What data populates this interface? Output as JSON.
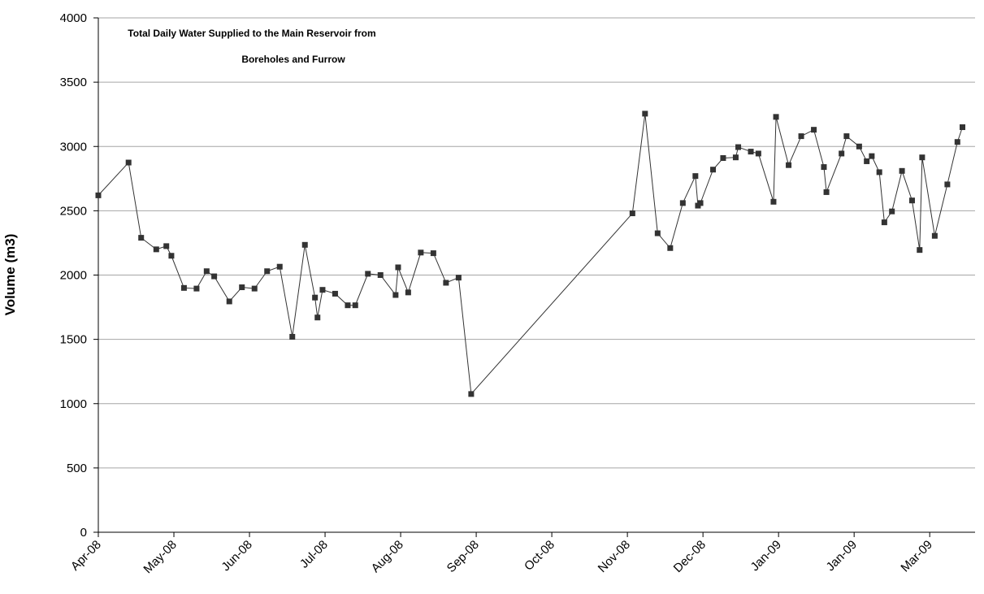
{
  "chart_data": {
    "type": "line",
    "title": [
      "Total Daily Water Supplied  to the Main Reservoir from",
      "Boreholes and Furrow"
    ],
    "y_label": "Volume (m3)",
    "x": [
      0,
      12,
      17,
      23,
      27,
      29,
      34,
      39,
      43,
      46,
      52,
      57,
      62,
      67,
      72,
      77,
      82,
      86,
      87,
      89,
      94,
      99,
      102,
      107,
      112,
      118,
      119,
      123,
      128,
      133,
      138,
      143,
      148,
      212,
      217,
      222,
      227,
      232,
      237,
      238,
      239,
      244,
      248,
      253,
      254,
      259,
      262,
      268,
      269,
      274,
      279,
      284,
      288,
      289,
      295,
      297,
      302,
      305,
      307,
      310,
      312,
      315,
      319,
      323,
      326,
      327,
      332,
      337,
      341,
      343
    ],
    "series": [
      {
        "color": "#333333",
        "values": [
          2620,
          2875,
          2290,
          2200,
          2225,
          2150,
          1900,
          1895,
          2030,
          1990,
          1795,
          1905,
          1895,
          2030,
          2065,
          1520,
          2235,
          1825,
          1670,
          1885,
          1855,
          1765,
          1765,
          2010,
          2000,
          1845,
          2060,
          1865,
          2175,
          2170,
          1940,
          1980,
          1075,
          2480,
          3255,
          2325,
          2210,
          2560,
          2770,
          2540,
          2560,
          2820,
          2910,
          2915,
          2995,
          2960,
          2945,
          2570,
          3230,
          2855,
          3080,
          3130,
          2840,
          2645,
          2945,
          3080,
          3000,
          2885,
          2925,
          2800,
          2410,
          2495,
          2810,
          2580,
          2195,
          2915,
          2305,
          2705,
          3035,
          3150
        ]
      }
    ],
    "xlim": [
      0,
      348
    ],
    "xticks": [
      {
        "value": 0,
        "label": "Apr-08"
      },
      {
        "value": 30,
        "label": "May-08"
      },
      {
        "value": 60,
        "label": "Jun-08"
      },
      {
        "value": 90,
        "label": "Jul-08"
      },
      {
        "value": 120,
        "label": "Aug-08"
      },
      {
        "value": 150,
        "label": "Sep-08"
      },
      {
        "value": 180,
        "label": "Oct-08"
      },
      {
        "value": 210,
        "label": "Nov-08"
      },
      {
        "value": 240,
        "label": "Dec-08"
      },
      {
        "value": 270,
        "label": "Jan-09"
      },
      {
        "value": 300,
        "label": "Jan-09"
      },
      {
        "value": 330,
        "label": "Mar-09"
      }
    ],
    "ylim": [
      0,
      4000
    ],
    "yticks": [
      0,
      500,
      1000,
      1500,
      2000,
      2500,
      3000,
      3500,
      4000
    ],
    "grid": true
  }
}
